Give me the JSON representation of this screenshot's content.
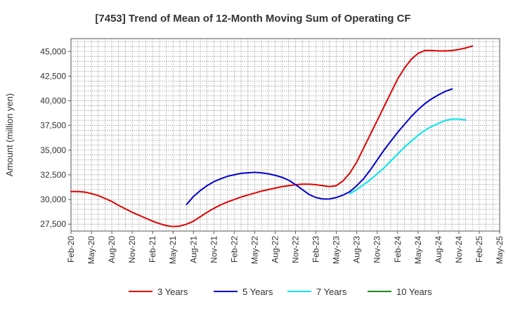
{
  "chart_data": {
    "type": "line",
    "title": "[7453]  Trend of Mean of 12-Month Moving Sum of Operating CF",
    "xlabel": "",
    "ylabel": "Amount (million yen)",
    "ylim": [
      26800,
      46300
    ],
    "yticks": [
      27500,
      30000,
      32500,
      35000,
      37500,
      40000,
      42500,
      45000
    ],
    "ytick_labels": [
      "27,500",
      "30,000",
      "32,500",
      "35,000",
      "37,500",
      "40,000",
      "42,500",
      "45,000"
    ],
    "x_start": "2020-02",
    "x_end": "2025-05",
    "xtick_labels": [
      "Feb-20",
      "May-20",
      "Aug-20",
      "Nov-20",
      "Feb-21",
      "May-21",
      "Aug-21",
      "Nov-21",
      "Feb-22",
      "May-22",
      "Aug-22",
      "Nov-22",
      "Feb-23",
      "May-23",
      "Aug-23",
      "Nov-23",
      "Feb-24",
      "May-24",
      "Aug-24",
      "Nov-24",
      "Feb-25",
      "May-25"
    ],
    "grid": true,
    "legend_position": "bottom",
    "series": [
      {
        "name": "3 Years",
        "color": "#e00000",
        "start": "2020-02",
        "values": [
          30800,
          30800,
          30750,
          30600,
          30400,
          30100,
          29800,
          29400,
          29050,
          28700,
          28400,
          28100,
          27800,
          27550,
          27350,
          27250,
          27300,
          27500,
          27800,
          28250,
          28700,
          29100,
          29450,
          29750,
          30000,
          30250,
          30450,
          30650,
          30850,
          31000,
          31150,
          31300,
          31400,
          31500,
          31550,
          31550,
          31500,
          31400,
          31300,
          31400,
          31900,
          32700,
          33800,
          35200,
          36600,
          38000,
          39400,
          40800,
          42200,
          43300,
          44200,
          44800,
          45100,
          45100,
          45050,
          45050,
          45100,
          45200,
          45350,
          45550
        ]
      },
      {
        "name": "5 Years",
        "color": "#0000cc",
        "start": "2021-07",
        "values": [
          29500,
          30300,
          30900,
          31400,
          31800,
          32100,
          32350,
          32500,
          32650,
          32700,
          32750,
          32700,
          32600,
          32450,
          32250,
          31950,
          31500,
          31000,
          30500,
          30200,
          30050,
          30050,
          30200,
          30450,
          30800,
          31400,
          32100,
          33000,
          34000,
          35000,
          35900,
          36800,
          37600,
          38400,
          39100,
          39700,
          40200,
          40600,
          40950,
          41200
        ]
      },
      {
        "name": "7 Years",
        "color": "#00e5ee",
        "start": "2023-07",
        "values": [
          30600,
          31000,
          31500,
          32000,
          32600,
          33200,
          33900,
          34600,
          35300,
          35900,
          36500,
          37000,
          37400,
          37700,
          38000,
          38150,
          38150,
          38050
        ]
      },
      {
        "name": "10 Years",
        "color": "#1a8a1a",
        "start": "2025-02",
        "values": []
      }
    ]
  }
}
